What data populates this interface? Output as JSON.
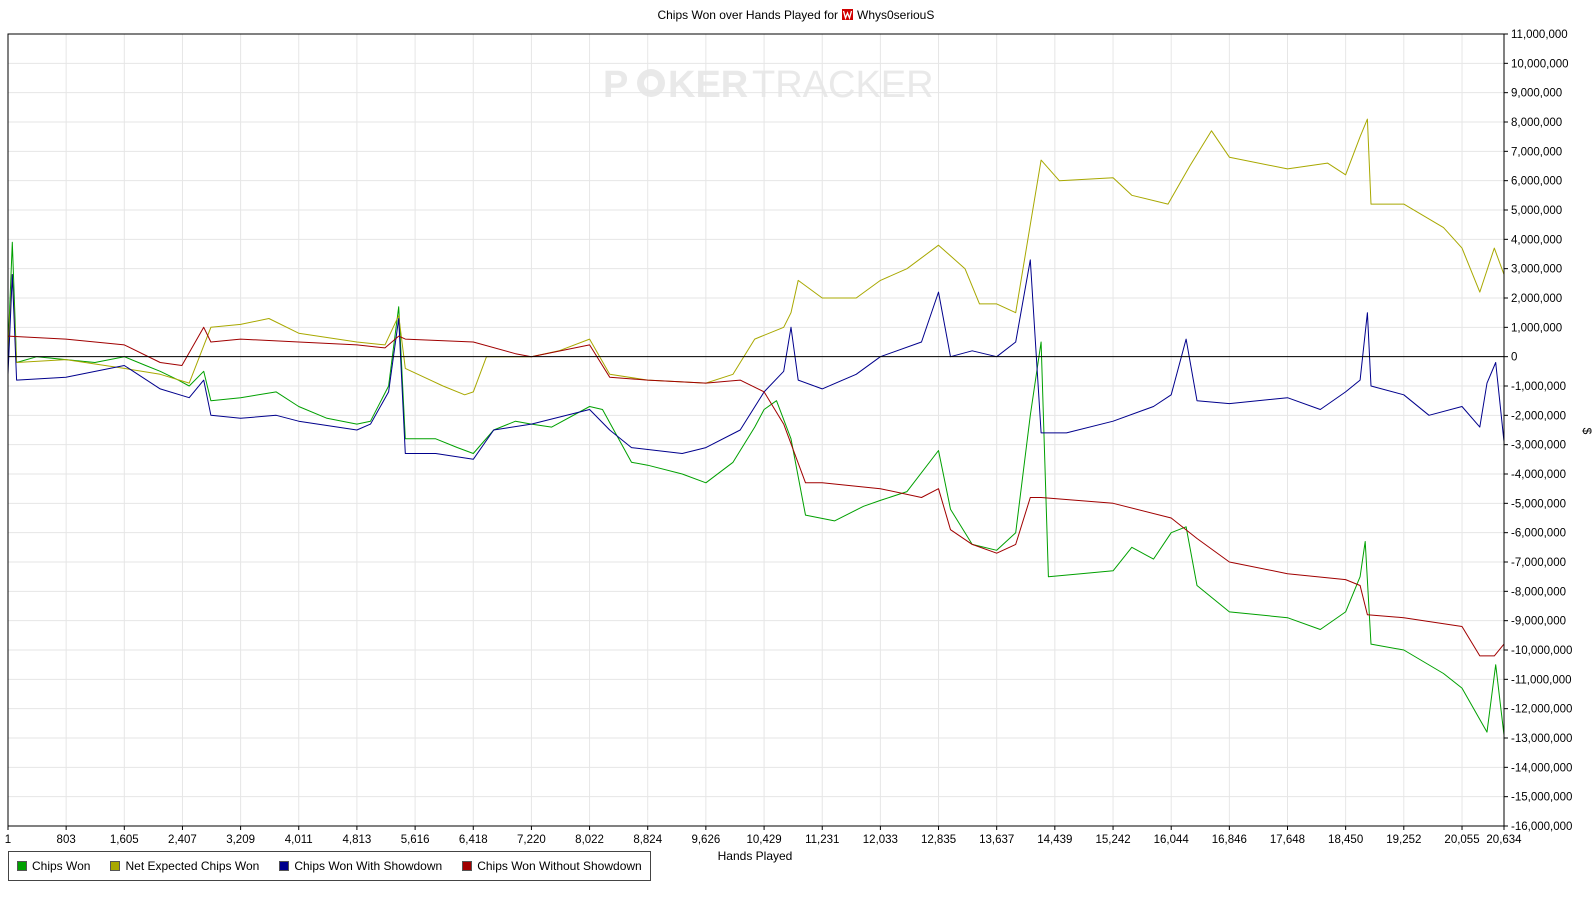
{
  "chart_data": {
    "type": "line",
    "title": "Chips Won over Hands Played for",
    "player": "Whys0seriouS",
    "watermark": {
      "poker": "P",
      "ker": "KER",
      "tracker": "TRACKER"
    },
    "xlabel": "Hands Played",
    "ylabel": "$",
    "xlim": [
      1,
      20634
    ],
    "ylim": [
      -16000000,
      11000000
    ],
    "x_ticks": [
      "1",
      "803",
      "1,605",
      "2,407",
      "3,209",
      "4,011",
      "4,813",
      "5,616",
      "6,418",
      "7,220",
      "8,022",
      "8,824",
      "9,626",
      "10,429",
      "11,231",
      "12,033",
      "12,835",
      "13,637",
      "14,439",
      "15,242",
      "16,044",
      "16,846",
      "17,648",
      "18,450",
      "19,252",
      "20,055",
      "20,634"
    ],
    "y_ticks": [
      "11,000,000",
      "10,000,000",
      "9,000,000",
      "8,000,000",
      "7,000,000",
      "6,000,000",
      "5,000,000",
      "4,000,000",
      "3,000,000",
      "2,000,000",
      "1,000,000",
      "0",
      "-1,000,000",
      "-2,000,000",
      "-3,000,000",
      "-4,000,000",
      "-5,000,000",
      "-6,000,000",
      "-7,000,000",
      "-8,000,000",
      "-9,000,000",
      "-10,000,000",
      "-11,000,000",
      "-12,000,000",
      "-13,000,000",
      "-14,000,000",
      "-15,000,000",
      "-16,000,000"
    ],
    "grid": true,
    "legend_position": "bottom-left",
    "series": [
      {
        "name": "Chips Won",
        "color": "#00a000",
        "points": [
          [
            1,
            200000
          ],
          [
            60,
            3900000
          ],
          [
            120,
            -200000
          ],
          [
            400,
            0
          ],
          [
            800,
            -100000
          ],
          [
            1200,
            -200000
          ],
          [
            1605,
            0
          ],
          [
            1900,
            -300000
          ],
          [
            2100,
            -500000
          ],
          [
            2350,
            -800000
          ],
          [
            2500,
            -1000000
          ],
          [
            2700,
            -500000
          ],
          [
            2800,
            -1500000
          ],
          [
            3209,
            -1400000
          ],
          [
            3700,
            -1200000
          ],
          [
            4011,
            -1700000
          ],
          [
            4400,
            -2100000
          ],
          [
            4813,
            -2300000
          ],
          [
            5000,
            -2200000
          ],
          [
            5250,
            -1000000
          ],
          [
            5390,
            1700000
          ],
          [
            5480,
            -2800000
          ],
          [
            5900,
            -2800000
          ],
          [
            6200,
            -3100000
          ],
          [
            6418,
            -3300000
          ],
          [
            6700,
            -2500000
          ],
          [
            7000,
            -2200000
          ],
          [
            7220,
            -2300000
          ],
          [
            7500,
            -2400000
          ],
          [
            8022,
            -1700000
          ],
          [
            8200,
            -1800000
          ],
          [
            8600,
            -3600000
          ],
          [
            8824,
            -3700000
          ],
          [
            9300,
            -4000000
          ],
          [
            9626,
            -4300000
          ],
          [
            10000,
            -3600000
          ],
          [
            10300,
            -2400000
          ],
          [
            10429,
            -1800000
          ],
          [
            10600,
            -1500000
          ],
          [
            10800,
            -2800000
          ],
          [
            11000,
            -5400000
          ],
          [
            11400,
            -5600000
          ],
          [
            11800,
            -5100000
          ],
          [
            12033,
            -4900000
          ],
          [
            12400,
            -4600000
          ],
          [
            12835,
            -3200000
          ],
          [
            13000,
            -5200000
          ],
          [
            13300,
            -6400000
          ],
          [
            13637,
            -6600000
          ],
          [
            13900,
            -6000000
          ],
          [
            14100,
            -2000000
          ],
          [
            14250,
            500000
          ],
          [
            14350,
            -7500000
          ],
          [
            14800,
            -7400000
          ],
          [
            15242,
            -7300000
          ],
          [
            15500,
            -6500000
          ],
          [
            15800,
            -6900000
          ],
          [
            16044,
            -6000000
          ],
          [
            16250,
            -5800000
          ],
          [
            16400,
            -7800000
          ],
          [
            16846,
            -8700000
          ],
          [
            17648,
            -8900000
          ],
          [
            18100,
            -9300000
          ],
          [
            18450,
            -8700000
          ],
          [
            18650,
            -7500000
          ],
          [
            18720,
            -6300000
          ],
          [
            18800,
            -9800000
          ],
          [
            19252,
            -10000000
          ],
          [
            19800,
            -10800000
          ],
          [
            20055,
            -11300000
          ],
          [
            20400,
            -12800000
          ],
          [
            20520,
            -10500000
          ],
          [
            20634,
            -12900000
          ]
        ]
      },
      {
        "name": "Net Expected Chips Won",
        "color": "#a8a800",
        "points": [
          [
            1,
            200000
          ],
          [
            60,
            2800000
          ],
          [
            120,
            -200000
          ],
          [
            800,
            -100000
          ],
          [
            1605,
            -400000
          ],
          [
            2100,
            -600000
          ],
          [
            2500,
            -900000
          ],
          [
            2800,
            1000000
          ],
          [
            3209,
            1100000
          ],
          [
            3600,
            1300000
          ],
          [
            4011,
            800000
          ],
          [
            4813,
            500000
          ],
          [
            5200,
            400000
          ],
          [
            5390,
            1400000
          ],
          [
            5480,
            -400000
          ],
          [
            6000,
            -1000000
          ],
          [
            6300,
            -1300000
          ],
          [
            6418,
            -1200000
          ],
          [
            6600,
            0
          ],
          [
            7220,
            0
          ],
          [
            7600,
            200000
          ],
          [
            8022,
            600000
          ],
          [
            8300,
            -600000
          ],
          [
            8824,
            -800000
          ],
          [
            9626,
            -900000
          ],
          [
            10000,
            -600000
          ],
          [
            10300,
            600000
          ],
          [
            10700,
            1000000
          ],
          [
            10800,
            1500000
          ],
          [
            10900,
            2600000
          ],
          [
            11231,
            2000000
          ],
          [
            11700,
            2000000
          ],
          [
            12033,
            2600000
          ],
          [
            12400,
            3000000
          ],
          [
            12835,
            3800000
          ],
          [
            13200,
            3000000
          ],
          [
            13400,
            1800000
          ],
          [
            13637,
            1800000
          ],
          [
            13900,
            1500000
          ],
          [
            14100,
            4500000
          ],
          [
            14250,
            6700000
          ],
          [
            14500,
            6000000
          ],
          [
            15242,
            6100000
          ],
          [
            15500,
            5500000
          ],
          [
            16000,
            5200000
          ],
          [
            16300,
            6500000
          ],
          [
            16600,
            7700000
          ],
          [
            16846,
            6800000
          ],
          [
            17648,
            6400000
          ],
          [
            18200,
            6600000
          ],
          [
            18450,
            6200000
          ],
          [
            18650,
            7500000
          ],
          [
            18750,
            8100000
          ],
          [
            18800,
            5200000
          ],
          [
            19252,
            5200000
          ],
          [
            19800,
            4400000
          ],
          [
            20055,
            3700000
          ],
          [
            20300,
            2200000
          ],
          [
            20500,
            3700000
          ],
          [
            20634,
            2800000
          ]
        ]
      },
      {
        "name": "Chips Won With Showdown",
        "color": "#00008c",
        "points": [
          [
            1,
            -600000
          ],
          [
            60,
            2800000
          ],
          [
            120,
            -800000
          ],
          [
            800,
            -700000
          ],
          [
            1605,
            -300000
          ],
          [
            2100,
            -1100000
          ],
          [
            2500,
            -1400000
          ],
          [
            2700,
            -800000
          ],
          [
            2800,
            -2000000
          ],
          [
            3209,
            -2100000
          ],
          [
            3700,
            -2000000
          ],
          [
            4011,
            -2200000
          ],
          [
            4813,
            -2500000
          ],
          [
            5000,
            -2300000
          ],
          [
            5250,
            -1200000
          ],
          [
            5390,
            1300000
          ],
          [
            5480,
            -3300000
          ],
          [
            5900,
            -3300000
          ],
          [
            6418,
            -3500000
          ],
          [
            6700,
            -2500000
          ],
          [
            7220,
            -2300000
          ],
          [
            8022,
            -1800000
          ],
          [
            8300,
            -2500000
          ],
          [
            8600,
            -3100000
          ],
          [
            9300,
            -3300000
          ],
          [
            9626,
            -3100000
          ],
          [
            10100,
            -2500000
          ],
          [
            10429,
            -1200000
          ],
          [
            10700,
            -500000
          ],
          [
            10800,
            1000000
          ],
          [
            10900,
            -800000
          ],
          [
            11231,
            -1100000
          ],
          [
            11700,
            -600000
          ],
          [
            12033,
            0
          ],
          [
            12600,
            500000
          ],
          [
            12835,
            2200000
          ],
          [
            13000,
            0
          ],
          [
            13300,
            200000
          ],
          [
            13637,
            0
          ],
          [
            13900,
            500000
          ],
          [
            14100,
            3300000
          ],
          [
            14250,
            -2600000
          ],
          [
            14600,
            -2600000
          ],
          [
            15242,
            -2200000
          ],
          [
            15800,
            -1700000
          ],
          [
            16044,
            -1300000
          ],
          [
            16250,
            600000
          ],
          [
            16400,
            -1500000
          ],
          [
            16846,
            -1600000
          ],
          [
            17648,
            -1400000
          ],
          [
            18100,
            -1800000
          ],
          [
            18450,
            -1200000
          ],
          [
            18650,
            -800000
          ],
          [
            18750,
            1500000
          ],
          [
            18800,
            -1000000
          ],
          [
            19252,
            -1300000
          ],
          [
            19600,
            -2000000
          ],
          [
            20055,
            -1700000
          ],
          [
            20300,
            -2400000
          ],
          [
            20400,
            -900000
          ],
          [
            20520,
            -200000
          ],
          [
            20634,
            -2900000
          ]
        ]
      },
      {
        "name": "Chips Won Without Showdown",
        "color": "#a00000",
        "points": [
          [
            1,
            700000
          ],
          [
            800,
            600000
          ],
          [
            1605,
            400000
          ],
          [
            2100,
            -200000
          ],
          [
            2400,
            -300000
          ],
          [
            2700,
            1000000
          ],
          [
            2800,
            500000
          ],
          [
            3209,
            600000
          ],
          [
            4011,
            500000
          ],
          [
            4813,
            400000
          ],
          [
            5200,
            300000
          ],
          [
            5390,
            700000
          ],
          [
            5480,
            600000
          ],
          [
            6418,
            500000
          ],
          [
            7000,
            100000
          ],
          [
            7220,
            0
          ],
          [
            8022,
            400000
          ],
          [
            8300,
            -700000
          ],
          [
            8824,
            -800000
          ],
          [
            9626,
            -900000
          ],
          [
            10100,
            -800000
          ],
          [
            10429,
            -1200000
          ],
          [
            10700,
            -2300000
          ],
          [
            11000,
            -4300000
          ],
          [
            11231,
            -4300000
          ],
          [
            12033,
            -4500000
          ],
          [
            12600,
            -4800000
          ],
          [
            12835,
            -4500000
          ],
          [
            13000,
            -5900000
          ],
          [
            13300,
            -6400000
          ],
          [
            13637,
            -6700000
          ],
          [
            13900,
            -6400000
          ],
          [
            14100,
            -4800000
          ],
          [
            14250,
            -4800000
          ],
          [
            15242,
            -5000000
          ],
          [
            16044,
            -5500000
          ],
          [
            16400,
            -6200000
          ],
          [
            16846,
            -7000000
          ],
          [
            17648,
            -7400000
          ],
          [
            18450,
            -7600000
          ],
          [
            18650,
            -7800000
          ],
          [
            18750,
            -8800000
          ],
          [
            19252,
            -8900000
          ],
          [
            20055,
            -9200000
          ],
          [
            20300,
            -10200000
          ],
          [
            20500,
            -10200000
          ],
          [
            20634,
            -9800000
          ]
        ]
      }
    ]
  }
}
